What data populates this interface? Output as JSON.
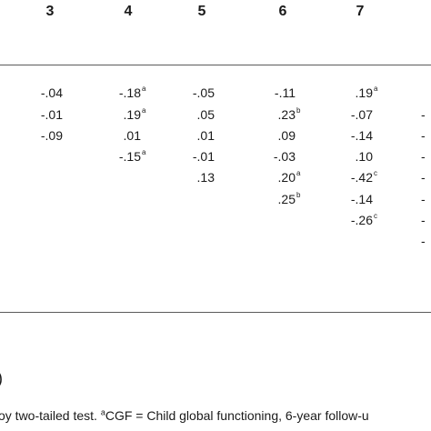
{
  "table": {
    "headers": [
      "3",
      "4",
      "5",
      "6",
      "7"
    ],
    "columns": [
      {
        "cells": [
          {
            "v": "-.04",
            "sup": ""
          },
          {
            "v": "-.01",
            "sup": ""
          },
          {
            "v": "-.09",
            "sup": ""
          }
        ]
      },
      {
        "cells": [
          {
            "v": "-.18",
            "sup": "a"
          },
          {
            "v": ".19",
            "sup": "a"
          },
          {
            "v": ".01",
            "sup": ""
          },
          {
            "v": "-.15",
            "sup": "a"
          }
        ]
      },
      {
        "cells": [
          {
            "v": "-.05",
            "sup": ""
          },
          {
            "v": ".05",
            "sup": ""
          },
          {
            "v": ".01",
            "sup": ""
          },
          {
            "v": "-.01",
            "sup": ""
          },
          {
            "v": ".13",
            "sup": ""
          }
        ]
      },
      {
        "cells": [
          {
            "v": "-.11",
            "sup": ""
          },
          {
            "v": ".23",
            "sup": "b"
          },
          {
            "v": ".09",
            "sup": ""
          },
          {
            "v": "-.03",
            "sup": ""
          },
          {
            "v": ".20",
            "sup": "a"
          },
          {
            "v": ".25",
            "sup": "b"
          }
        ]
      },
      {
        "cells": [
          {
            "v": ".19",
            "sup": "a"
          },
          {
            "v": "-.07",
            "sup": ""
          },
          {
            "v": "-.14",
            "sup": ""
          },
          {
            "v": ".10",
            "sup": ""
          },
          {
            "v": "-.42",
            "sup": "c"
          },
          {
            "v": "-.14",
            "sup": ""
          },
          {
            "v": "-.26",
            "sup": "c"
          }
        ]
      }
    ],
    "edge_marks": [
      "-",
      "-",
      "-",
      "-",
      "-",
      "-",
      "-"
    ]
  },
  "partial_paren": ")",
  "footnote": {
    "before": "oy two-tailed test. ",
    "sup": "a",
    "after": "CGF = Child global functioning, 6-year follow-u"
  }
}
